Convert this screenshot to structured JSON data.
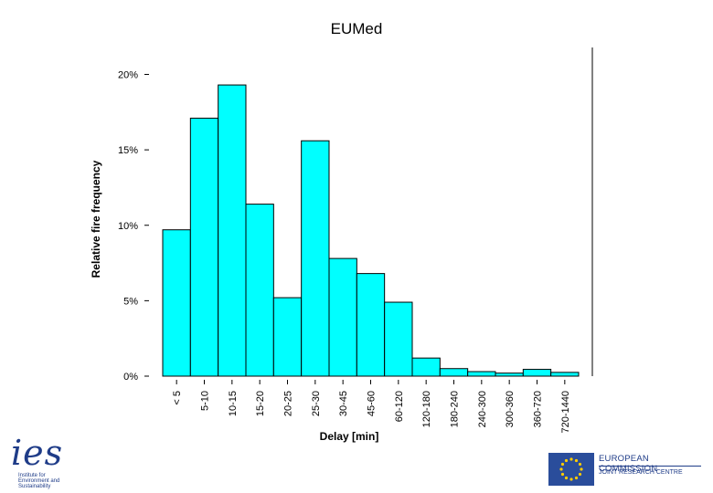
{
  "chart_data": {
    "type": "bar",
    "title": "EUMed",
    "xlabel": "Delay [min]",
    "ylabel": "Relative fire frequency",
    "ylim": [
      0,
      21.5
    ],
    "yticks": [
      "0%",
      "5%",
      "10%",
      "15%",
      "20%"
    ],
    "categories": [
      "< 5",
      "5-10",
      "10-15",
      "15-20",
      "20-25",
      "25-30",
      "30-45",
      "45-60",
      "60-120",
      "120-180",
      "180-240",
      "240-300",
      "300-360",
      "360-720",
      "720-1440"
    ],
    "values": [
      9.7,
      17.1,
      19.3,
      11.4,
      5.2,
      15.6,
      7.8,
      6.8,
      4.9,
      1.2,
      0.5,
      0.3,
      0.2,
      0.45,
      0.25
    ],
    "bar_color": "#00ffff",
    "grid": false
  },
  "logos": {
    "ies": {
      "mark": "ies",
      "text": [
        "Institute for",
        "Environment and",
        "Sustainability"
      ]
    },
    "ec": {
      "line1": "EUROPEAN COMMISSION",
      "line2": "JOINT RESEARCH CENTRE",
      "flag_color": "#2a4d9b",
      "star_color": "#ffcc00"
    }
  }
}
